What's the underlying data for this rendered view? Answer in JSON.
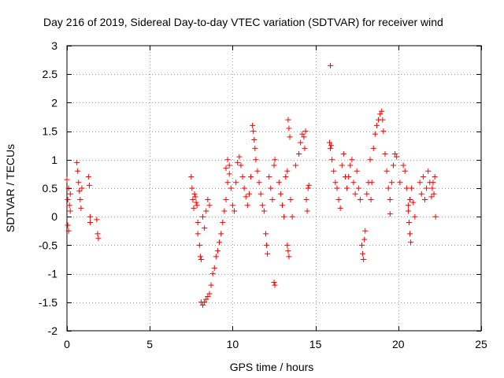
{
  "chart_data": {
    "type": "scatter",
    "title": "Day 216 of 2019, Sidereal Day-to-day VTEC variation (SDTVAR) for receiver wind",
    "xlabel": "GPS time / hours",
    "ylabel": "SDTVAR / TECUs",
    "xlim": [
      0,
      25
    ],
    "ylim": [
      -2,
      3
    ],
    "xticks": [
      0,
      5,
      10,
      15,
      20,
      25
    ],
    "yticks": [
      -2,
      -1.5,
      -1,
      -0.5,
      0,
      0.5,
      1,
      1.5,
      2,
      2.5,
      3
    ],
    "xtick_labels": [
      "0",
      "5",
      "10",
      "15",
      "20",
      "25"
    ],
    "ytick_labels": [
      "-2",
      "-1.5",
      "-1",
      "-0.5",
      "0",
      "0.5",
      "1",
      "1.5",
      "2",
      "2.5",
      "3"
    ],
    "grid": true,
    "marker": "+",
    "series": [
      {
        "name": "SDTVAR",
        "color": "#ff0000",
        "points": [
          [
            0.0,
            0.65
          ],
          [
            0.05,
            0.3
          ],
          [
            0.05,
            -0.15
          ],
          [
            0.1,
            0.5
          ],
          [
            0.1,
            -0.25
          ],
          [
            0.15,
            0.2
          ],
          [
            0.2,
            0.1
          ],
          [
            0.2,
            0.4
          ],
          [
            0.6,
            0.95
          ],
          [
            0.65,
            0.8
          ],
          [
            0.7,
            0.6
          ],
          [
            0.75,
            0.45
          ],
          [
            0.8,
            0.3
          ],
          [
            0.85,
            0.15
          ],
          [
            0.9,
            0.5
          ],
          [
            1.3,
            0.7
          ],
          [
            1.35,
            0.55
          ],
          [
            1.4,
            0.0
          ],
          [
            1.4,
            -0.1
          ],
          [
            1.8,
            -0.05
          ],
          [
            1.85,
            -0.3
          ],
          [
            1.9,
            -0.38
          ],
          [
            7.5,
            0.7
          ],
          [
            7.55,
            0.5
          ],
          [
            7.6,
            0.3
          ],
          [
            7.65,
            0.15
          ],
          [
            7.7,
            0.4
          ],
          [
            7.75,
            0.35
          ],
          [
            7.8,
            0.25
          ],
          [
            7.85,
            0.2
          ],
          [
            7.9,
            -0.1
          ],
          [
            7.9,
            -0.3
          ],
          [
            8.0,
            -0.5
          ],
          [
            8.05,
            -0.7
          ],
          [
            8.1,
            -0.75
          ],
          [
            8.2,
            0.0
          ],
          [
            8.3,
            -0.2
          ],
          [
            8.4,
            0.1
          ],
          [
            8.5,
            0.3
          ],
          [
            8.6,
            0.2
          ],
          [
            8.1,
            -1.5
          ],
          [
            8.2,
            -1.55
          ],
          [
            8.3,
            -1.5
          ],
          [
            8.4,
            -1.45
          ],
          [
            8.5,
            -1.4
          ],
          [
            8.6,
            -1.35
          ],
          [
            8.7,
            -1.2
          ],
          [
            8.8,
            -1.0
          ],
          [
            8.9,
            -0.9
          ],
          [
            9.0,
            -0.7
          ],
          [
            9.1,
            -0.6
          ],
          [
            9.2,
            -0.45
          ],
          [
            9.3,
            -0.3
          ],
          [
            9.4,
            -0.1
          ],
          [
            9.5,
            0.1
          ],
          [
            9.6,
            0.3
          ],
          [
            9.7,
            0.6
          ],
          [
            9.8,
            0.9
          ],
          [
            9.6,
            0.85
          ],
          [
            9.7,
            1.0
          ],
          [
            9.8,
            0.75
          ],
          [
            9.9,
            0.5
          ],
          [
            10.0,
            0.2
          ],
          [
            10.1,
            0.1
          ],
          [
            10.2,
            0.6
          ],
          [
            10.3,
            0.95
          ],
          [
            10.4,
            1.05
          ],
          [
            10.5,
            0.9
          ],
          [
            10.6,
            0.7
          ],
          [
            10.7,
            0.5
          ],
          [
            10.8,
            0.35
          ],
          [
            10.9,
            0.2
          ],
          [
            11.0,
            0.4
          ],
          [
            11.1,
            0.7
          ],
          [
            11.2,
            1.6
          ],
          [
            11.25,
            1.5
          ],
          [
            11.3,
            1.35
          ],
          [
            11.35,
            1.2
          ],
          [
            11.4,
            1.0
          ],
          [
            11.5,
            0.8
          ],
          [
            11.6,
            0.6
          ],
          [
            11.7,
            0.4
          ],
          [
            11.8,
            0.2
          ],
          [
            11.9,
            0.1
          ],
          [
            12.0,
            -0.3
          ],
          [
            12.05,
            -0.5
          ],
          [
            12.1,
            -0.65
          ],
          [
            12.2,
            0.7
          ],
          [
            12.3,
            0.5
          ],
          [
            12.4,
            0.3
          ],
          [
            12.5,
            0.9
          ],
          [
            12.55,
            1.0
          ],
          [
            12.5,
            -1.15
          ],
          [
            12.55,
            -1.2
          ],
          [
            12.8,
            0.6
          ],
          [
            12.9,
            0.4
          ],
          [
            13.0,
            0.2
          ],
          [
            13.1,
            0.0
          ],
          [
            13.2,
            0.7
          ],
          [
            13.3,
            0.8
          ],
          [
            13.3,
            -0.5
          ],
          [
            13.35,
            -0.6
          ],
          [
            13.4,
            -0.7
          ],
          [
            13.35,
            1.7
          ],
          [
            13.4,
            1.55
          ],
          [
            13.45,
            1.4
          ],
          [
            13.5,
            0.3
          ],
          [
            13.6,
            0.0
          ],
          [
            13.8,
            0.9
          ],
          [
            14.0,
            1.1
          ],
          [
            14.1,
            1.3
          ],
          [
            14.2,
            1.45
          ],
          [
            14.3,
            1.4
          ],
          [
            14.35,
            1.2
          ],
          [
            14.4,
            1.5
          ],
          [
            14.45,
            0.3
          ],
          [
            14.5,
            0.1
          ],
          [
            14.55,
            0.5
          ],
          [
            14.6,
            0.55
          ],
          [
            15.9,
            2.65
          ],
          [
            15.85,
            1.3
          ],
          [
            15.9,
            1.2
          ],
          [
            15.95,
            1.25
          ],
          [
            16.0,
            1.0
          ],
          [
            16.1,
            0.8
          ],
          [
            16.2,
            0.6
          ],
          [
            16.3,
            0.5
          ],
          [
            16.4,
            0.3
          ],
          [
            16.5,
            0.15
          ],
          [
            16.6,
            0.9
          ],
          [
            16.7,
            1.1
          ],
          [
            16.8,
            0.7
          ],
          [
            16.9,
            0.5
          ],
          [
            17.0,
            0.7
          ],
          [
            17.1,
            0.9
          ],
          [
            17.2,
            1.0
          ],
          [
            17.3,
            0.6
          ],
          [
            17.4,
            0.4
          ],
          [
            17.5,
            0.8
          ],
          [
            17.6,
            0.5
          ],
          [
            17.7,
            0.3
          ],
          [
            17.8,
            -0.5
          ],
          [
            17.85,
            -0.65
          ],
          [
            17.9,
            -0.75
          ],
          [
            17.95,
            -0.4
          ],
          [
            18.0,
            -0.25
          ],
          [
            18.1,
            0.4
          ],
          [
            18.2,
            0.6
          ],
          [
            18.3,
            1.0
          ],
          [
            18.35,
            0.3
          ],
          [
            18.4,
            0.6
          ],
          [
            18.5,
            1.2
          ],
          [
            18.6,
            1.45
          ],
          [
            18.7,
            1.6
          ],
          [
            18.8,
            1.7
          ],
          [
            18.9,
            1.8
          ],
          [
            19.0,
            1.85
          ],
          [
            19.05,
            1.7
          ],
          [
            19.1,
            1.5
          ],
          [
            19.2,
            1.1
          ],
          [
            19.3,
            0.8
          ],
          [
            19.4,
            0.5
          ],
          [
            19.5,
            0.3
          ],
          [
            19.6,
            0.6
          ],
          [
            19.7,
            0.9
          ],
          [
            19.8,
            1.1
          ],
          [
            19.9,
            1.05
          ],
          [
            19.5,
            0.05
          ],
          [
            20.1,
            0.6
          ],
          [
            20.3,
            0.9
          ],
          [
            20.4,
            0.8
          ],
          [
            20.5,
            0.5
          ],
          [
            20.6,
            0.2
          ],
          [
            20.65,
            -0.1
          ],
          [
            20.7,
            -0.3
          ],
          [
            20.75,
            -0.45
          ],
          [
            20.6,
            0.1
          ],
          [
            20.7,
            0.3
          ],
          [
            20.8,
            0.5
          ],
          [
            20.9,
            0.25
          ],
          [
            21.0,
            0.0
          ],
          [
            21.3,
            0.6
          ],
          [
            21.4,
            0.4
          ],
          [
            21.5,
            0.7
          ],
          [
            21.6,
            0.3
          ],
          [
            21.7,
            0.5
          ],
          [
            21.8,
            0.8
          ],
          [
            21.9,
            0.6
          ],
          [
            22.0,
            0.35
          ],
          [
            22.05,
            0.5
          ],
          [
            22.1,
            0.6
          ],
          [
            22.15,
            0.4
          ],
          [
            22.2,
            0.7
          ],
          [
            22.25,
            0.0
          ]
        ]
      }
    ]
  }
}
